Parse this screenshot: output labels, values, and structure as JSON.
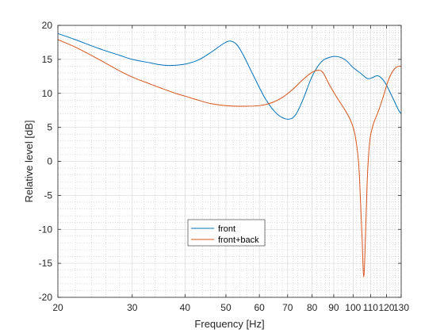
{
  "chart_data": {
    "type": "line",
    "xlabel": "Frequency [Hz]",
    "ylabel": "Relative level [dB]",
    "x_scale": "log",
    "xlim": [
      20,
      130
    ],
    "ylim": [
      -20,
      20
    ],
    "x_ticks": [
      20,
      30,
      40,
      50,
      60,
      70,
      80,
      90,
      100,
      110,
      120,
      130
    ],
    "x_tick_labels": [
      "20",
      "30",
      "40",
      "50",
      "60",
      "70",
      "80",
      "90",
      "100",
      "110",
      "120",
      "130"
    ],
    "y_ticks": [
      -20,
      -15,
      -10,
      -5,
      0,
      5,
      10,
      15,
      20
    ],
    "y_tick_labels": [
      "-20",
      "-15",
      "-10",
      "-5",
      "0",
      "5",
      "10",
      "15",
      "20"
    ],
    "grid": true,
    "minor_grid": true,
    "legend_position": "bottom-center",
    "series": [
      {
        "name": "front",
        "color": "#0072BD",
        "points": [
          [
            20,
            18.8
          ],
          [
            22,
            17.9
          ],
          [
            25,
            16.6
          ],
          [
            28,
            15.6
          ],
          [
            30,
            15.0
          ],
          [
            33,
            14.5
          ],
          [
            35,
            14.2
          ],
          [
            37,
            14.1
          ],
          [
            40,
            14.3
          ],
          [
            43,
            14.9
          ],
          [
            46,
            16.0
          ],
          [
            49,
            17.2
          ],
          [
            51,
            17.7
          ],
          [
            53,
            17.2
          ],
          [
            55,
            15.6
          ],
          [
            58,
            12.7
          ],
          [
            62,
            9.2
          ],
          [
            66,
            7.0
          ],
          [
            70,
            6.2
          ],
          [
            73,
            6.8
          ],
          [
            76,
            9.0
          ],
          [
            80,
            12.5
          ],
          [
            84,
            14.6
          ],
          [
            88,
            15.3
          ],
          [
            92,
            15.4
          ],
          [
            96,
            14.9
          ],
          [
            100,
            13.8
          ],
          [
            104,
            13.0
          ],
          [
            108,
            12.2
          ],
          [
            111,
            12.3
          ],
          [
            114,
            12.6
          ],
          [
            117,
            12.2
          ],
          [
            120,
            11.2
          ],
          [
            124,
            9.4
          ],
          [
            128,
            7.6
          ],
          [
            130,
            7.0
          ]
        ]
      },
      {
        "name": "front+back",
        "color": "#D95319",
        "points": [
          [
            20,
            17.9
          ],
          [
            22,
            16.8
          ],
          [
            25,
            15.0
          ],
          [
            28,
            13.3
          ],
          [
            30,
            12.4
          ],
          [
            33,
            11.4
          ],
          [
            35,
            10.8
          ],
          [
            38,
            10.0
          ],
          [
            40,
            9.6
          ],
          [
            43,
            9.0
          ],
          [
            46,
            8.5
          ],
          [
            50,
            8.2
          ],
          [
            55,
            8.1
          ],
          [
            60,
            8.2
          ],
          [
            64,
            8.6
          ],
          [
            68,
            9.4
          ],
          [
            72,
            10.6
          ],
          [
            76,
            12.0
          ],
          [
            80,
            13.1
          ],
          [
            83,
            13.4
          ],
          [
            85,
            13.0
          ],
          [
            88,
            11.2
          ],
          [
            92,
            9.2
          ],
          [
            96,
            7.4
          ],
          [
            99,
            5.8
          ],
          [
            101,
            4.0
          ],
          [
            103,
            0
          ],
          [
            104,
            -5
          ],
          [
            105,
            -11
          ],
          [
            106,
            -17
          ],
          [
            107,
            -11
          ],
          [
            108,
            -3
          ],
          [
            109,
            1.5
          ],
          [
            110,
            3.8
          ],
          [
            112,
            5.7
          ],
          [
            115,
            7.5
          ],
          [
            118,
            9.6
          ],
          [
            121,
            11.8
          ],
          [
            124,
            13.2
          ],
          [
            127,
            13.9
          ],
          [
            130,
            14.0
          ]
        ]
      }
    ]
  }
}
